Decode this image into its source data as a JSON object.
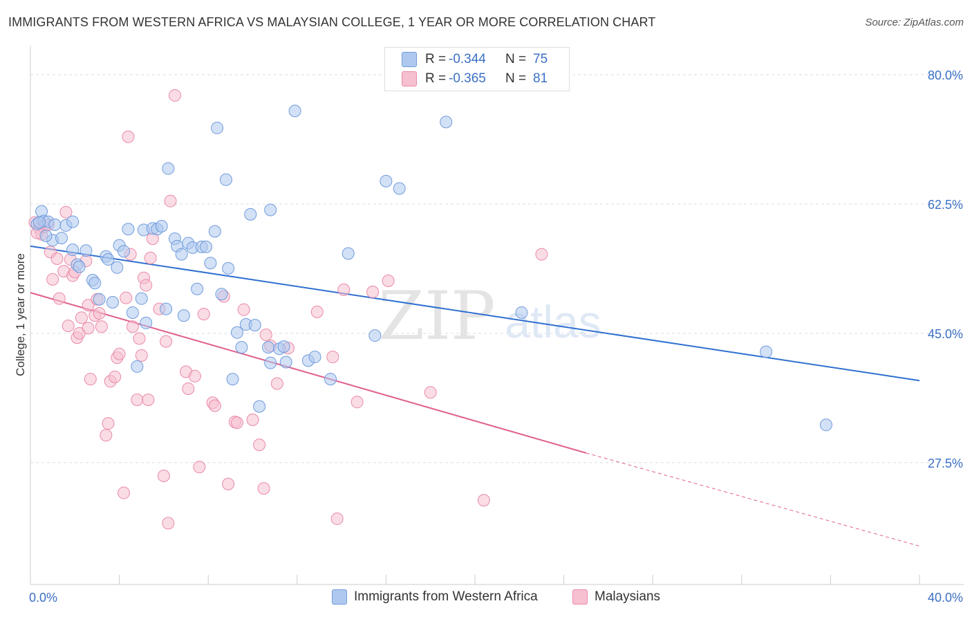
{
  "title": "IMMIGRANTS FROM WESTERN AFRICA VS MALAYSIAN COLLEGE, 1 YEAR OR MORE CORRELATION CHART",
  "source": "Source: ZipAtlas.com",
  "watermark": {
    "zip": "ZIP",
    "atlas": "atlas"
  },
  "colors": {
    "blue_fill": "#aec8ef",
    "blue_stroke": "#6f9bdc",
    "blue_line": "#2e6fd0",
    "pink_fill": "#f6c0d0",
    "pink_stroke": "#e98aa8",
    "pink_line": "#e0608f",
    "value_text": "#3a6fc4",
    "grid": "#dddddd"
  },
  "legend": {
    "rows": [
      {
        "r_label": "R =",
        "r_value": "-0.344",
        "n_label": "N =",
        "n_value": "75"
      },
      {
        "r_label": "R =",
        "r_value": "-0.365",
        "n_label": "N =",
        "n_value": "81"
      }
    ],
    "bottom": [
      "Immigrants from Western Africa",
      "Malaysians"
    ]
  },
  "chart_data": {
    "type": "scatter",
    "title": "IMMIGRANTS FROM WESTERN AFRICA VS MALAYSIAN COLLEGE, 1 YEAR OR MORE CORRELATION CHART",
    "xlabel": "",
    "ylabel": "College, 1 year or more",
    "xlim": [
      0,
      40
    ],
    "ylim": [
      11,
      83
    ],
    "x_tick_labels": [
      "0.0%",
      "40.0%"
    ],
    "y_ticks": [
      27.5,
      45.0,
      62.5,
      80.0
    ],
    "y_tick_labels": [
      "27.5%",
      "45.0%",
      "62.5%",
      "80.0%"
    ],
    "grid": true,
    "legend_position": "top-center",
    "series": [
      {
        "name": "Immigrants from Western Africa",
        "r": -0.344,
        "n": 75,
        "trend": {
          "x": [
            0,
            40
          ],
          "y": [
            56.8,
            38.6
          ]
        },
        "points": [
          [
            0.3,
            59.8
          ],
          [
            0.5,
            61.5
          ],
          [
            0.6,
            60.2
          ],
          [
            0.8,
            60.1
          ],
          [
            1.0,
            57.6
          ],
          [
            1.1,
            59.7
          ],
          [
            0.7,
            58.2
          ],
          [
            1.4,
            57.9
          ],
          [
            1.6,
            59.6
          ],
          [
            1.9,
            60.1
          ],
          [
            1.9,
            56.3
          ],
          [
            2.1,
            54.3
          ],
          [
            2.2,
            54.0
          ],
          [
            2.5,
            56.2
          ],
          [
            2.8,
            52.2
          ],
          [
            2.9,
            51.8
          ],
          [
            3.1,
            49.6
          ],
          [
            3.4,
            55.4
          ],
          [
            3.5,
            55.0
          ],
          [
            3.7,
            49.2
          ],
          [
            3.9,
            53.9
          ],
          [
            4.0,
            56.9
          ],
          [
            4.2,
            56.1
          ],
          [
            4.4,
            59.1
          ],
          [
            4.6,
            47.8
          ],
          [
            4.8,
            40.5
          ],
          [
            5.0,
            49.7
          ],
          [
            5.2,
            46.4
          ],
          [
            5.1,
            59.0
          ],
          [
            5.5,
            59.2
          ],
          [
            5.7,
            59.1
          ],
          [
            5.9,
            59.5
          ],
          [
            6.1,
            48.3
          ],
          [
            6.2,
            67.3
          ],
          [
            6.5,
            57.8
          ],
          [
            6.6,
            56.8
          ],
          [
            6.8,
            55.7
          ],
          [
            6.9,
            47.4
          ],
          [
            7.1,
            57.2
          ],
          [
            7.3,
            56.6
          ],
          [
            7.5,
            51.0
          ],
          [
            7.7,
            56.7
          ],
          [
            7.9,
            56.7
          ],
          [
            8.1,
            54.5
          ],
          [
            8.3,
            58.8
          ],
          [
            8.4,
            72.8
          ],
          [
            8.6,
            50.3
          ],
          [
            8.8,
            65.8
          ],
          [
            8.9,
            53.8
          ],
          [
            9.1,
            38.8
          ],
          [
            9.3,
            45.1
          ],
          [
            9.5,
            43.1
          ],
          [
            9.7,
            46.2
          ],
          [
            9.9,
            61.1
          ],
          [
            10.1,
            46.1
          ],
          [
            10.3,
            35.1
          ],
          [
            10.7,
            43.1
          ],
          [
            10.8,
            41.0
          ],
          [
            10.8,
            61.7
          ],
          [
            11.2,
            42.9
          ],
          [
            11.4,
            43.2
          ],
          [
            11.5,
            41.1
          ],
          [
            11.9,
            75.1
          ],
          [
            12.5,
            41.3
          ],
          [
            12.8,
            41.8
          ],
          [
            13.5,
            38.8
          ],
          [
            14.3,
            55.8
          ],
          [
            15.5,
            44.7
          ],
          [
            16.0,
            65.6
          ],
          [
            16.6,
            64.6
          ],
          [
            18.7,
            73.6
          ],
          [
            22.1,
            47.8
          ],
          [
            33.1,
            42.5
          ],
          [
            35.8,
            32.6
          ],
          [
            0.4,
            60.0
          ]
        ]
      },
      {
        "name": "Malaysians",
        "r": -0.365,
        "n": 81,
        "trend": {
          "x": [
            0,
            25
          ],
          "y": [
            50.5,
            28.8
          ]
        },
        "trend_dashed": {
          "x": [
            25,
            40
          ],
          "y": [
            28.8,
            16.2
          ]
        },
        "points": [
          [
            0.2,
            60.0
          ],
          [
            0.4,
            59.2
          ],
          [
            0.5,
            58.4
          ],
          [
            0.6,
            59.4
          ],
          [
            0.8,
            59.7
          ],
          [
            0.9,
            56.0
          ],
          [
            1.0,
            52.3
          ],
          [
            1.2,
            55.1
          ],
          [
            1.3,
            49.7
          ],
          [
            1.5,
            53.4
          ],
          [
            1.6,
            61.4
          ],
          [
            1.8,
            55.0
          ],
          [
            1.9,
            52.8
          ],
          [
            1.7,
            46.0
          ],
          [
            2.0,
            53.3
          ],
          [
            2.1,
            44.4
          ],
          [
            2.2,
            45.0
          ],
          [
            2.3,
            47.1
          ],
          [
            2.5,
            54.8
          ],
          [
            2.6,
            48.8
          ],
          [
            2.6,
            45.7
          ],
          [
            2.7,
            38.8
          ],
          [
            2.9,
            47.4
          ],
          [
            3.0,
            49.6
          ],
          [
            3.1,
            47.7
          ],
          [
            3.2,
            45.9
          ],
          [
            3.4,
            31.2
          ],
          [
            3.5,
            32.8
          ],
          [
            3.6,
            38.5
          ],
          [
            3.8,
            39.1
          ],
          [
            3.9,
            41.7
          ],
          [
            4.0,
            42.2
          ],
          [
            4.2,
            23.4
          ],
          [
            4.3,
            49.8
          ],
          [
            4.4,
            71.6
          ],
          [
            4.5,
            55.7
          ],
          [
            4.6,
            45.9
          ],
          [
            4.8,
            36.0
          ],
          [
            4.9,
            44.3
          ],
          [
            5.0,
            42.0
          ],
          [
            5.1,
            52.5
          ],
          [
            5.2,
            51.5
          ],
          [
            5.3,
            36.0
          ],
          [
            5.4,
            55.2
          ],
          [
            5.5,
            57.8
          ],
          [
            5.8,
            48.3
          ],
          [
            6.0,
            25.7
          ],
          [
            6.1,
            43.9
          ],
          [
            6.2,
            19.3
          ],
          [
            6.3,
            62.9
          ],
          [
            6.5,
            77.2
          ],
          [
            7.0,
            39.8
          ],
          [
            7.1,
            37.5
          ],
          [
            7.4,
            39.2
          ],
          [
            7.6,
            26.9
          ],
          [
            7.8,
            47.6
          ],
          [
            8.2,
            35.6
          ],
          [
            8.3,
            35.2
          ],
          [
            8.7,
            50.0
          ],
          [
            8.9,
            24.6
          ],
          [
            9.2,
            33.0
          ],
          [
            9.3,
            32.9
          ],
          [
            9.6,
            48.2
          ],
          [
            10.0,
            33.3
          ],
          [
            10.3,
            29.9
          ],
          [
            10.5,
            24.0
          ],
          [
            10.6,
            44.8
          ],
          [
            10.8,
            43.3
          ],
          [
            11.1,
            38.2
          ],
          [
            11.6,
            43.0
          ],
          [
            12.9,
            47.9
          ],
          [
            13.6,
            41.8
          ],
          [
            13.8,
            19.9
          ],
          [
            14.1,
            50.9
          ],
          [
            14.7,
            35.7
          ],
          [
            15.4,
            50.6
          ],
          [
            16.1,
            52.1
          ],
          [
            18.0,
            37.0
          ],
          [
            20.4,
            22.4
          ],
          [
            23.0,
            55.7
          ],
          [
            0.3,
            58.6
          ]
        ]
      }
    ]
  }
}
